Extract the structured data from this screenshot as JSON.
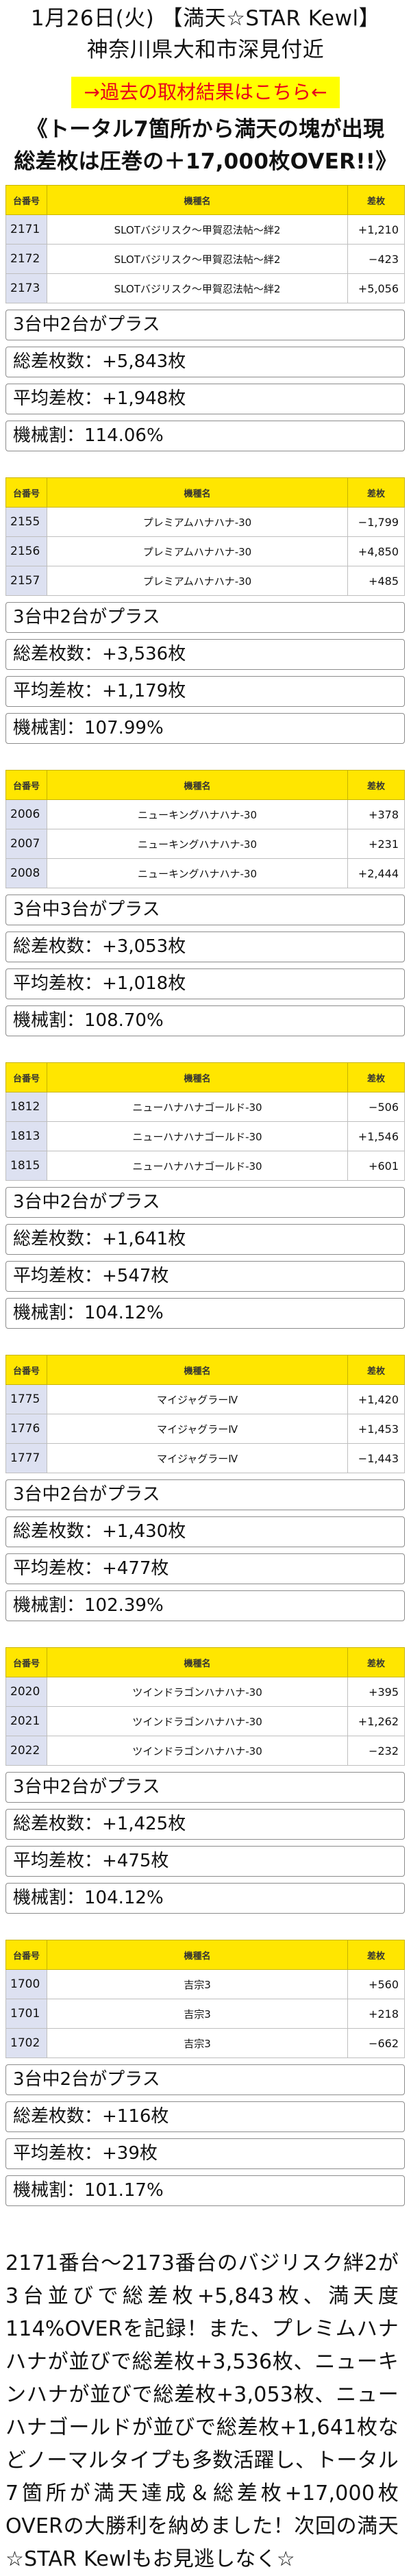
{
  "header": {
    "date_title": "1月26日(火) 【満天☆STAR Kewl】",
    "location": "神奈川県大和市深見付近",
    "past_results_link": "→過去の取材結果はこちら←",
    "headline_line1": "《トータル7箇所から満天の塊が出現",
    "headline_line2": "総差枚は圧巻の＋17,000枚OVER!!》"
  },
  "table_headers": {
    "number": "台番号",
    "model": "機種名",
    "diff": "差枚"
  },
  "sections": [
    {
      "rows": [
        {
          "number": "2171",
          "model": "SLOTバジリスク～甲賀忍法帖～絆2",
          "diff": "+1,210"
        },
        {
          "number": "2172",
          "model": "SLOTバジリスク～甲賀忍法帖～絆2",
          "diff": "−423"
        },
        {
          "number": "2173",
          "model": "SLOTバジリスク～甲賀忍法帖～絆2",
          "diff": "+5,056"
        }
      ],
      "plus_count": "3台中2台がプラス",
      "total": "総差枚数：+5,843枚",
      "average": "平均差枚：+1,948枚",
      "rate": "機械割：114.06%"
    },
    {
      "rows": [
        {
          "number": "2155",
          "model": "プレミアムハナハナ-30",
          "diff": "−1,799"
        },
        {
          "number": "2156",
          "model": "プレミアムハナハナ-30",
          "diff": "+4,850"
        },
        {
          "number": "2157",
          "model": "プレミアムハナハナ-30",
          "diff": "+485"
        }
      ],
      "plus_count": "3台中2台がプラス",
      "total": "総差枚数：+3,536枚",
      "average": "平均差枚：+1,179枚",
      "rate": "機械割：107.99%"
    },
    {
      "rows": [
        {
          "number": "2006",
          "model": "ニューキングハナハナ-30",
          "diff": "+378"
        },
        {
          "number": "2007",
          "model": "ニューキングハナハナ-30",
          "diff": "+231"
        },
        {
          "number": "2008",
          "model": "ニューキングハナハナ-30",
          "diff": "+2,444"
        }
      ],
      "plus_count": "3台中3台がプラス",
      "total": "総差枚数：+3,053枚",
      "average": "平均差枚：+1,018枚",
      "rate": "機械割：108.70%"
    },
    {
      "rows": [
        {
          "number": "1812",
          "model": "ニューハナハナゴールド-30",
          "diff": "−506"
        },
        {
          "number": "1813",
          "model": "ニューハナハナゴールド-30",
          "diff": "+1,546"
        },
        {
          "number": "1815",
          "model": "ニューハナハナゴールド-30",
          "diff": "+601"
        }
      ],
      "plus_count": "3台中2台がプラス",
      "total": "総差枚数：+1,641枚",
      "average": "平均差枚：+547枚",
      "rate": "機械割：104.12%"
    },
    {
      "rows": [
        {
          "number": "1775",
          "model": "マイジャグラーⅣ",
          "diff": "+1,420"
        },
        {
          "number": "1776",
          "model": "マイジャグラーⅣ",
          "diff": "+1,453"
        },
        {
          "number": "1777",
          "model": "マイジャグラーⅣ",
          "diff": "−1,443"
        }
      ],
      "plus_count": "3台中2台がプラス",
      "total": "総差枚数：+1,430枚",
      "average": "平均差枚：+477枚",
      "rate": "機械割：102.39%"
    },
    {
      "rows": [
        {
          "number": "2020",
          "model": "ツインドラゴンハナハナ-30",
          "diff": "+395"
        },
        {
          "number": "2021",
          "model": "ツインドラゴンハナハナ-30",
          "diff": "+1,262"
        },
        {
          "number": "2022",
          "model": "ツインドラゴンハナハナ-30",
          "diff": "−232"
        }
      ],
      "plus_count": "3台中2台がプラス",
      "total": "総差枚数：+1,425枚",
      "average": "平均差枚：+475枚",
      "rate": "機械割：104.12%"
    },
    {
      "rows": [
        {
          "number": "1700",
          "model": "吉宗3",
          "diff": "+560"
        },
        {
          "number": "1701",
          "model": "吉宗3",
          "diff": "+218"
        },
        {
          "number": "1702",
          "model": "吉宗3",
          "diff": "−662"
        }
      ],
      "plus_count": "3台中2台がプラス",
      "total": "総差枚数：+116枚",
      "average": "平均差枚：+39枚",
      "rate": "機械割：101.17%"
    }
  ],
  "summary": "2171番台～2173番台のバジリスク絆2が3台並びで総差枚+5,843枚、満天度114%OVERを記録！また、プレミムハナハナが並びで総差枚+3,536枚、ニューキンハナが並びで総差枚+3,053枚、ニューハナゴールドが並びで総差枚+1,641枚などノーマルタイプも多数活躍し、トータル7箇所が満天達成＆総差枚+17,000枚OVERの大勝利を納めました！次回の満天☆STAR Kewlもお見逃しなく☆"
}
